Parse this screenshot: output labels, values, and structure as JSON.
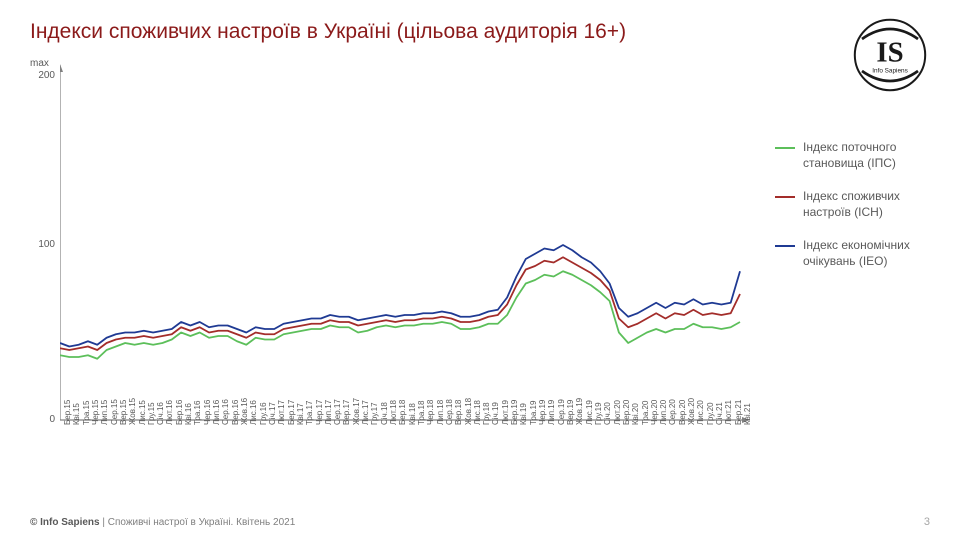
{
  "title": {
    "text": "Індекси споживчих настроїв в Україні (цільова аудиторія 16+)",
    "color": "#8b1a1a",
    "fontsize": 21
  },
  "logo": {
    "text": "IS",
    "subtitle": "Info Sapiens"
  },
  "footer": {
    "brand": "© Info Sapiens",
    "rest": " | Споживчі настрої в Україні. Квітень 2021"
  },
  "page_number": "3",
  "chart": {
    "type": "line",
    "background_color": "#ffffff",
    "axis_color": "#808080",
    "text_color": "#595959",
    "ylim": [
      0,
      200
    ],
    "yticks": [
      0,
      100,
      200
    ],
    "ylabel_top": "max",
    "x_labels": [
      "Бер.15",
      "Кві.15",
      "Тра.15",
      "Чер.15",
      "Лип.15",
      "Сер.15",
      "Вер.15",
      "Жов.15",
      "Лис.15",
      "Гру.15",
      "Січ.16",
      "Лют.16",
      "Бер.16",
      "Кві.16",
      "Тра.16",
      "Чер.16",
      "Лип.16",
      "Сер.16",
      "Вер.16",
      "Жов.16",
      "Лис.16",
      "Гру.16",
      "Січ.17",
      "Лют.17",
      "Бер.17",
      "Кві.17",
      "Тра.17",
      "Чер.17",
      "Лип.17",
      "Сер.17",
      "Вер.17",
      "Жов.17",
      "Лис.17",
      "Гру.17",
      "Січ.18",
      "Лют.18",
      "Бер.18",
      "Кві.18",
      "Тра.18",
      "Чер.18",
      "Лип.18",
      "Сер.18",
      "Вер.18",
      "Жов.18",
      "Лис.18",
      "Гру.18",
      "Січ.19",
      "Лют.19",
      "Бер.19",
      "Кві.19",
      "Тра.19",
      "Чер.19",
      "Лип.19",
      "Сер.19",
      "Вер.19",
      "Жов.19",
      "Лис.19",
      "Гру.19",
      "Січ.20",
      "Лют.20",
      "Бер.20",
      "Кві.20",
      "Тра.20",
      "Чер.20",
      "Лип.20",
      "Сер.20",
      "Вер.20",
      "Жов.20",
      "Лис.20",
      "Гру.20",
      "Січ.21",
      "Лют.21",
      "Бер.21",
      "Кві.21"
    ],
    "legend": [
      {
        "label": "Індекс поточного становища (ІПС)",
        "color": "#5cbf5a"
      },
      {
        "label": "Індекс споживчих настроїв (ІСН)",
        "color": "#a32d2a"
      },
      {
        "label": "Індекс економічних очікувань (ІЕО)",
        "color": "#1f3a93"
      }
    ],
    "series": {
      "ips": {
        "color": "#5cbf5a",
        "stroke_width": 1.8,
        "values": [
          37,
          36,
          36,
          37,
          35,
          40,
          42,
          44,
          43,
          44,
          43,
          44,
          46,
          50,
          48,
          50,
          47,
          48,
          48,
          45,
          43,
          47,
          46,
          46,
          49,
          50,
          51,
          52,
          52,
          54,
          53,
          53,
          50,
          51,
          53,
          54,
          53,
          54,
          54,
          55,
          55,
          56,
          55,
          52,
          52,
          53,
          55,
          55,
          60,
          70,
          78,
          80,
          83,
          82,
          85,
          83,
          80,
          77,
          73,
          68,
          50,
          44,
          47,
          50,
          52,
          50,
          52,
          52,
          55,
          53,
          53,
          52,
          53,
          56
        ]
      },
      "isn": {
        "color": "#a32d2a",
        "stroke_width": 1.8,
        "values": [
          41,
          40,
          41,
          42,
          40,
          44,
          46,
          47,
          47,
          48,
          47,
          48,
          49,
          53,
          51,
          53,
          50,
          51,
          51,
          49,
          47,
          50,
          49,
          49,
          52,
          53,
          54,
          55,
          55,
          57,
          56,
          56,
          54,
          55,
          56,
          57,
          56,
          57,
          57,
          58,
          58,
          59,
          58,
          56,
          56,
          57,
          59,
          60,
          66,
          77,
          86,
          88,
          91,
          90,
          93,
          90,
          87,
          84,
          80,
          74,
          58,
          53,
          55,
          58,
          61,
          58,
          61,
          60,
          63,
          60,
          61,
          60,
          61,
          72
        ]
      },
      "ieo": {
        "color": "#1f3a93",
        "stroke_width": 1.8,
        "values": [
          44,
          42,
          43,
          45,
          43,
          47,
          49,
          50,
          50,
          51,
          50,
          51,
          52,
          56,
          54,
          56,
          53,
          54,
          54,
          52,
          50,
          53,
          52,
          52,
          55,
          56,
          57,
          58,
          58,
          60,
          59,
          59,
          57,
          58,
          59,
          60,
          59,
          60,
          60,
          61,
          61,
          62,
          61,
          59,
          59,
          60,
          62,
          63,
          70,
          82,
          92,
          95,
          98,
          97,
          100,
          97,
          93,
          90,
          85,
          78,
          64,
          59,
          61,
          64,
          67,
          64,
          67,
          66,
          69,
          66,
          67,
          66,
          67,
          85
        ]
      }
    }
  }
}
